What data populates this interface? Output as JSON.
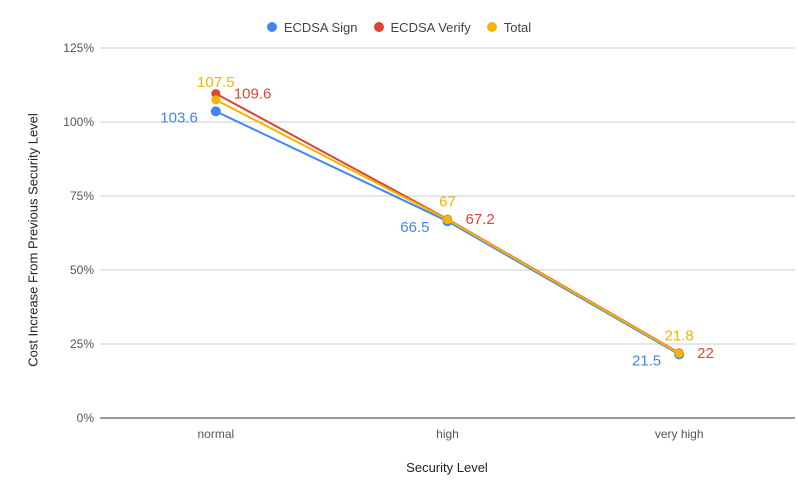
{
  "chart_data": {
    "type": "line",
    "categories": [
      "normal",
      "high",
      "very high"
    ],
    "series": [
      {
        "name": "ECDSA Sign",
        "values": [
          103.6,
          66.5,
          21.5
        ],
        "color": "#4285f4"
      },
      {
        "name": "ECDSA Verify",
        "values": [
          109.6,
          67.2,
          22
        ],
        "color": "#db4437"
      },
      {
        "name": "Total",
        "values": [
          107.5,
          67,
          21.8
        ],
        "color": "#f4b400"
      }
    ],
    "data_labels": [
      [
        "103.6",
        "66.5",
        "21.5"
      ],
      [
        "109.6",
        "67.2",
        "22"
      ],
      [
        "107.5",
        "67",
        "21.8"
      ]
    ],
    "xlabel": "Security Level",
    "ylabel": "Cost Increase From Previous Security Level",
    "ylim": [
      0,
      125
    ],
    "yticks": [
      "0%",
      "25%",
      "50%",
      "75%",
      "100%",
      "125%"
    ],
    "grid": true,
    "legend_position": "top-center"
  }
}
